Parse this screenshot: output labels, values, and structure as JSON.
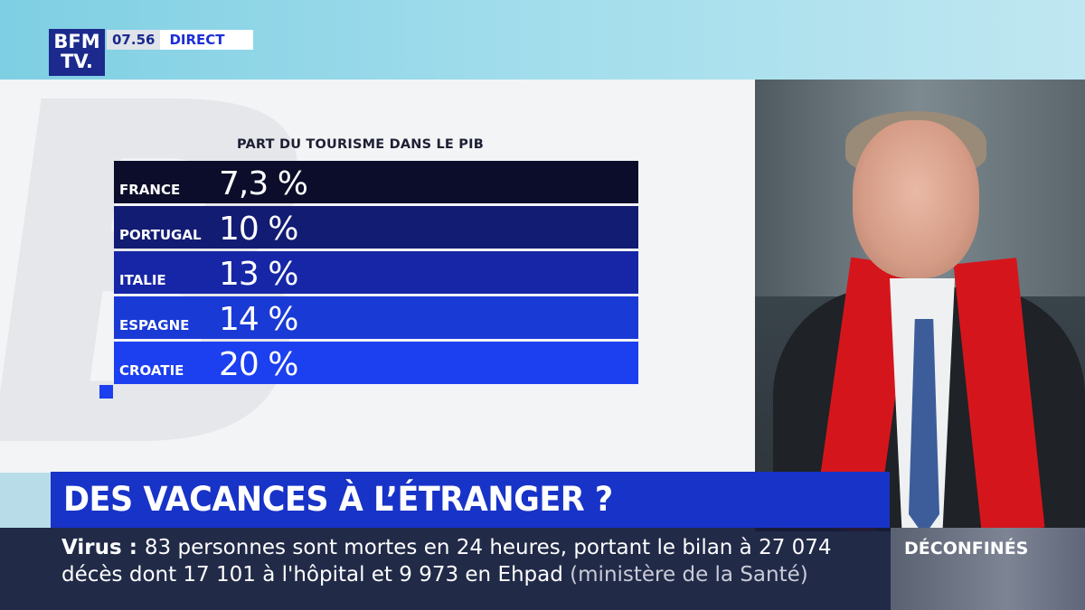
{
  "broadcast": {
    "logo_line1": "BFM",
    "logo_line2": "TV.",
    "time": "07.56",
    "live_label": "DIRECT"
  },
  "chart_data": {
    "type": "table",
    "title": "PART DU TOURISME DANS LE PIB",
    "categories": [
      "FRANCE",
      "PORTUGAL",
      "ITALIE",
      "ESPAGNE",
      "CROATIE"
    ],
    "values": [
      7.3,
      10,
      13,
      14,
      20
    ],
    "value_labels": [
      "7,3 %",
      "10 %",
      "13 %",
      "14 %",
      "20 %"
    ],
    "row_colors": [
      "#0b0d2a",
      "#131c73",
      "#1626a6",
      "#1a3ad6",
      "#1c3ff0"
    ]
  },
  "headline": {
    "text": "DES VACANCES À L’ÉTRANGER ?"
  },
  "ticker": {
    "tag": "Virus",
    "separator": " : ",
    "line1": "83 personnes sont mortes en 24 heures, portant le bilan à 27 074",
    "line2": "décès dont 17 101 à l'hôpital et 9 973 en Ehpad",
    "source": "(ministère de la Santé)",
    "side_label": "DÉCONFINÉS"
  }
}
